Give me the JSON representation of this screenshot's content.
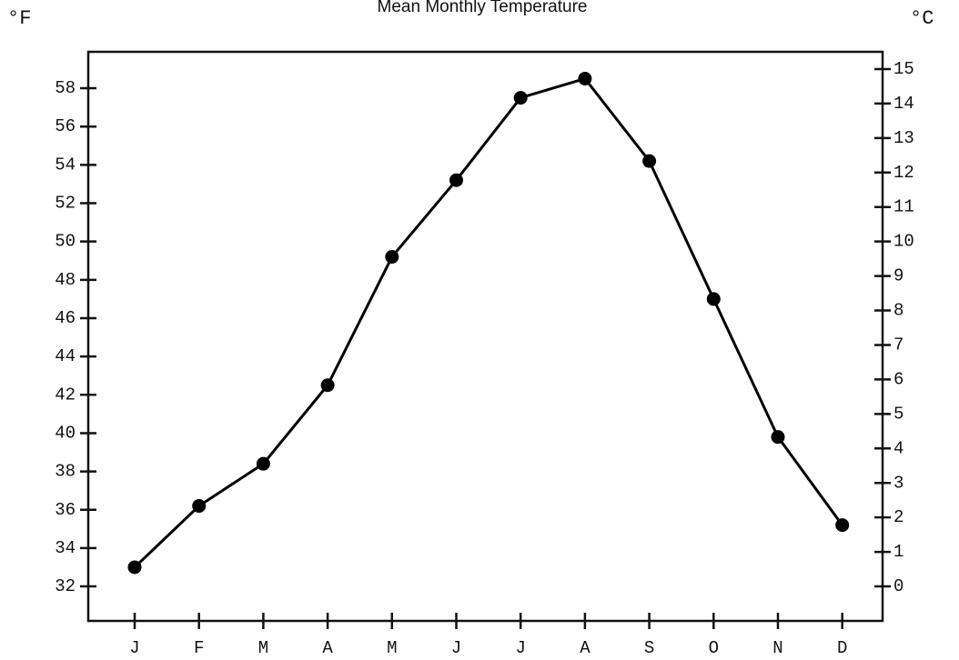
{
  "chart_data": {
    "type": "line",
    "title": "Mean Monthly Temperature",
    "ylabel": "°F",
    "y2label": "°C",
    "categories": [
      "J",
      "F",
      "M",
      "A",
      "M",
      "J",
      "J",
      "A",
      "S",
      "O",
      "N",
      "D"
    ],
    "values": [
      33.0,
      36.2,
      38.4,
      42.5,
      49.2,
      53.2,
      57.5,
      58.5,
      54.2,
      47.0,
      39.8,
      35.2
    ],
    "color": "#000000",
    "ylim": [
      30.2,
      59.9
    ],
    "yticks": [
      32,
      34,
      36,
      38,
      40,
      42,
      44,
      46,
      48,
      50,
      52,
      54,
      56,
      58
    ],
    "y2lim": [
      -1,
      15.5
    ],
    "y2ticks": [
      0,
      1,
      2,
      3,
      4,
      5,
      6,
      7,
      8,
      9,
      10,
      11,
      12,
      13,
      14,
      15
    ],
    "grid": false
  }
}
